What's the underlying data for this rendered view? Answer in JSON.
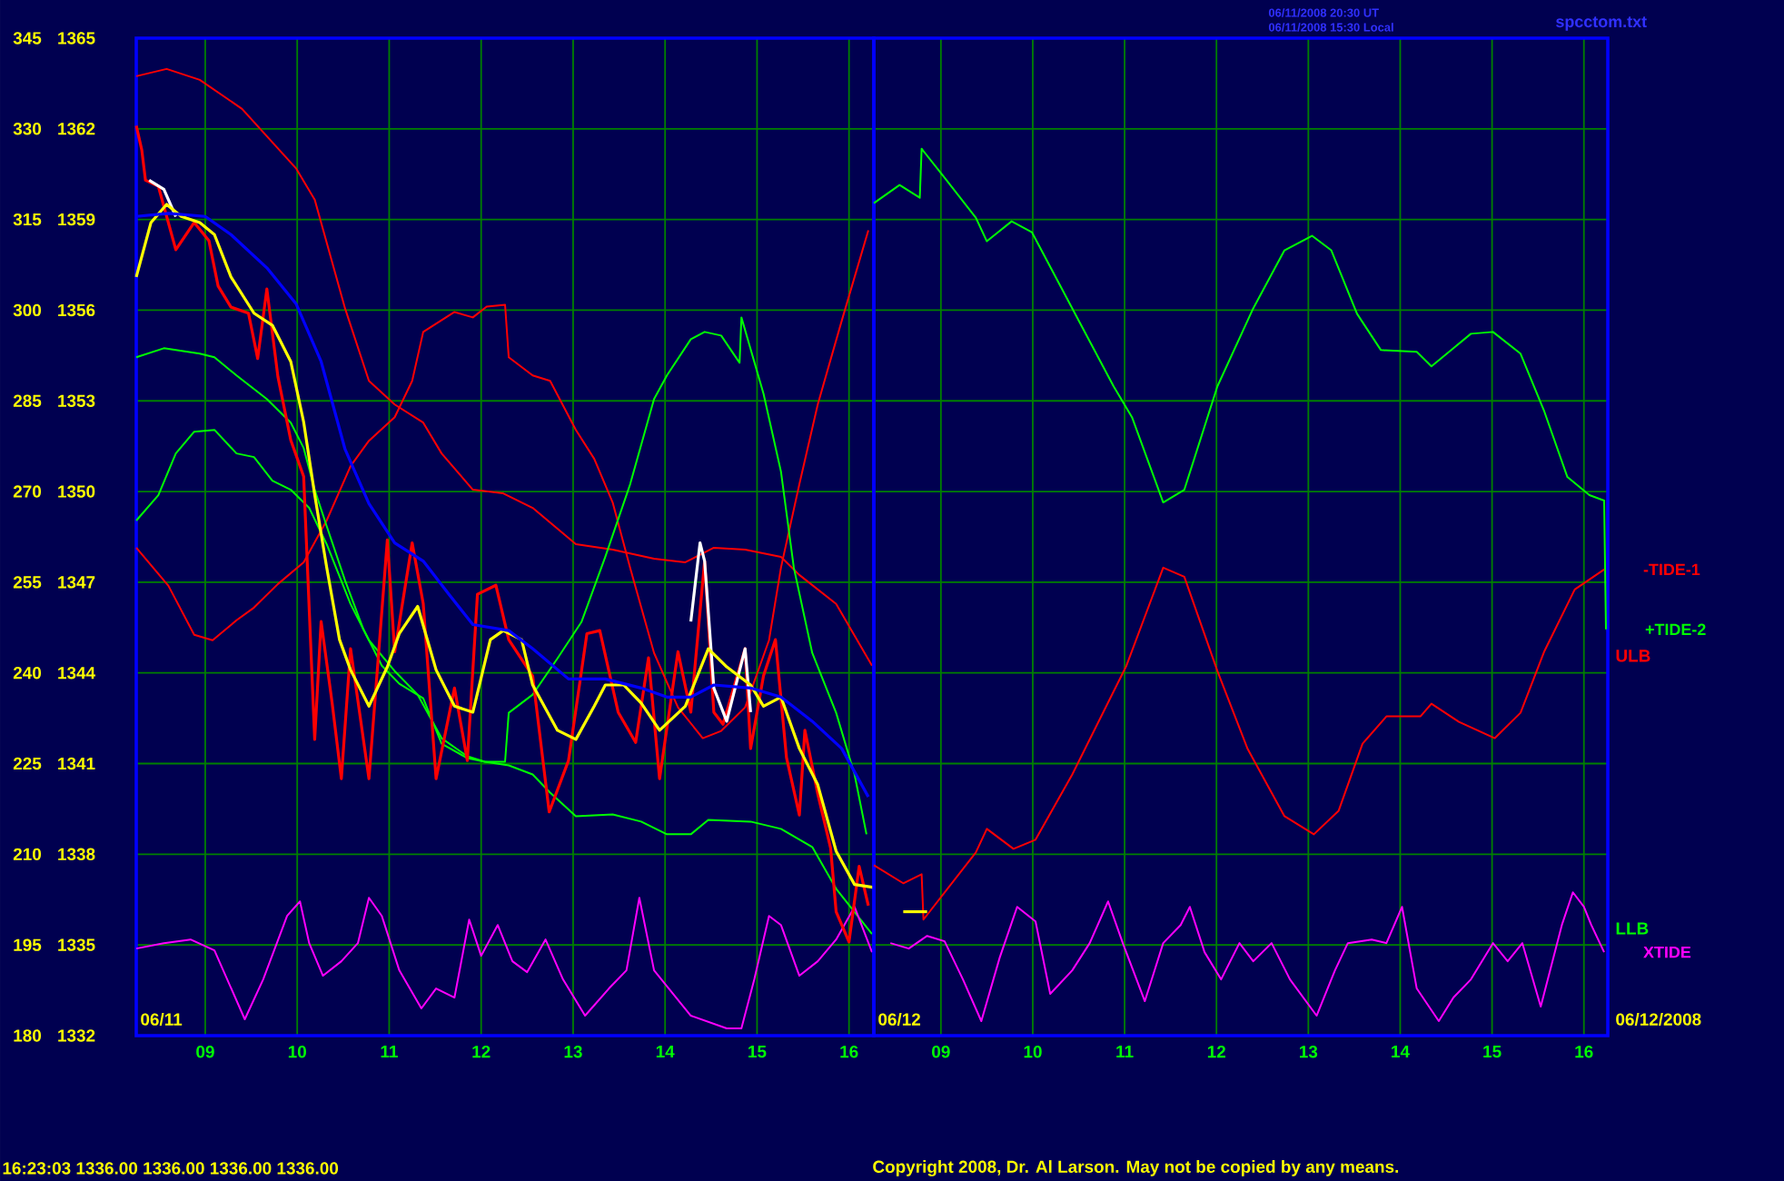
{
  "chart_data": [
    {
      "type": "line",
      "xlim": [
        8.25,
        16.27
      ],
      "ylim": [
        180,
        345
      ],
      "y2lim": [
        1332,
        1365
      ],
      "xticks": [
        {
          "value": 9,
          "label": "09"
        },
        10,
        11,
        12,
        13,
        14,
        15,
        16
      ],
      "yticks": [
        180,
        195,
        210,
        225,
        240,
        255,
        270,
        285,
        300,
        315,
        330,
        345
      ],
      "y2ticks": [
        1332,
        1335,
        1338,
        1341,
        1344,
        1347,
        1350,
        1353,
        1356,
        1359,
        1362,
        1365
      ],
      "grid": true,
      "annotations": [
        "06/11/2008 20:30 UT",
        "06/11/2008 15:30 Local",
        "spcctom.txt",
        "06/11",
        "16:23:03  1336.00 1336.00 1336.00 1336.00",
        "Copyright 2008, Dr. Al Larson. May not be copied by any means."
      ],
      "series": [
        {
          "color": "#ff0000",
          "axis": "y2",
          "x": [
            8.25,
            8.31,
            8.35,
            8.49,
            8.68,
            8.88,
            9.04,
            9.14,
            9.28,
            9.47,
            9.57,
            9.67,
            9.79,
            9.93,
            10.07,
            10.19,
            10.26,
            10.38,
            10.48,
            10.58,
            10.78,
            10.98,
            11.06,
            11.25,
            11.37,
            11.51,
            11.71,
            11.85,
            11.96,
            12.16,
            12.3,
            12.56,
            12.74,
            12.95,
            13.15,
            13.29,
            13.49,
            13.68,
            13.82,
            13.94,
            14.14,
            14.28,
            14.43,
            14.53,
            14.63,
            14.87,
            14.93,
            15.07,
            15.2,
            15.32,
            15.46,
            15.52,
            15.66,
            15.8,
            15.86,
            16.0,
            16.11,
            16.21
          ],
          "values": [
            1362.1,
            1361.3,
            1360.3,
            1360.1,
            1358.0,
            1358.9,
            1358.3,
            1356.8,
            1356.1,
            1355.9,
            1354.4,
            1356.7,
            1353.8,
            1351.7,
            1350.5,
            1341.8,
            1345.7,
            1343.0,
            1340.5,
            1344.8,
            1340.5,
            1348.4,
            1344.7,
            1348.3,
            1346.3,
            1340.5,
            1343.5,
            1341.1,
            1346.6,
            1346.9,
            1345.1,
            1343.9,
            1339.4,
            1341.1,
            1345.3,
            1345.4,
            1342.7,
            1341.7,
            1344.5,
            1340.5,
            1344.7,
            1342.7,
            1347.7,
            1342.7,
            1342.3,
            1344.8,
            1341.5,
            1343.9,
            1345.1,
            1341.2,
            1339.3,
            1342.1,
            1340.0,
            1338.2,
            1336.1,
            1335.1,
            1337.6,
            1336.3
          ]
        },
        {
          "color": "#ffffff",
          "axis": "y2",
          "x": [
            8.39,
            8.55,
            8.68,
            8.9,
            14.28,
            14.38,
            14.43,
            14.53,
            14.67,
            14.87,
            14.93
          ],
          "values": [
            1360.3,
            1360.0,
            1359.1,
            null,
            1345.7,
            1348.3,
            1347.7,
            1343.5,
            1342.4,
            1344.8,
            1342.7
          ]
        },
        {
          "color": "#ffff00",
          "axis": "y2",
          "x": [
            8.25,
            8.41,
            8.58,
            8.74,
            8.94,
            9.1,
            9.28,
            9.53,
            9.73,
            9.93,
            10.07,
            10.19,
            10.32,
            10.46,
            10.58,
            10.78,
            10.98,
            11.11,
            11.31,
            11.51,
            11.71,
            11.91,
            12.1,
            12.24,
            12.44,
            12.56,
            12.83,
            13.03,
            13.23,
            13.35,
            13.55,
            13.74,
            13.94,
            14.22,
            14.47,
            14.67,
            14.93,
            15.07,
            15.26,
            15.46,
            15.66,
            15.86,
            16.06,
            16.27
          ],
          "values": [
            1357.1,
            1358.9,
            1359.5,
            1359.1,
            1358.9,
            1358.5,
            1357.1,
            1355.9,
            1355.5,
            1354.3,
            1352.3,
            1349.9,
            1347.5,
            1345.1,
            1344.1,
            1342.9,
            1344.2,
            1345.3,
            1346.2,
            1344.1,
            1342.9,
            1342.7,
            1345.1,
            1345.4,
            1345.1,
            1343.6,
            1342.1,
            1341.8,
            1342.9,
            1343.6,
            1343.6,
            1343.0,
            1342.1,
            1342.9,
            1344.8,
            1344.2,
            1343.6,
            1342.9,
            1343.2,
            1341.5,
            1340.3,
            1338.1,
            1337.0,
            1336.9
          ]
        },
        {
          "color": "#0000ff",
          "axis": "y2",
          "x": [
            8.25,
            8.6,
            9.0,
            9.28,
            9.67,
            9.99,
            10.26,
            10.52,
            10.78,
            11.06,
            11.37,
            11.65,
            11.91,
            12.3,
            12.56,
            12.95,
            13.35,
            13.74,
            14.02,
            14.28,
            14.53,
            14.93,
            15.26,
            15.6,
            15.92,
            16.21
          ],
          "values": [
            1359.1,
            1359.2,
            1359.1,
            1358.5,
            1357.4,
            1356.2,
            1354.3,
            1351.4,
            1349.6,
            1348.3,
            1347.7,
            1346.6,
            1345.6,
            1345.4,
            1344.8,
            1343.8,
            1343.8,
            1343.5,
            1343.2,
            1343.2,
            1343.6,
            1343.5,
            1343.2,
            1342.4,
            1341.5,
            1339.9
          ]
        },
        {
          "color": "#ff0000",
          "x": [
            8.25,
            8.58,
            8.94,
            9.4,
            9.99,
            10.19,
            10.52,
            10.78,
            11.06,
            11.37,
            11.57,
            11.91,
            12.24,
            12.56,
            13.03,
            13.43,
            13.88,
            14.22,
            14.53,
            14.87,
            15.26,
            15.46,
            15.86,
            16.25
          ],
          "values": [
            338.7,
            339.9,
            338.1,
            333.3,
            323.4,
            318.3,
            300.3,
            288.3,
            284.4,
            281.4,
            276.3,
            270.3,
            269.7,
            267.3,
            261.3,
            260.4,
            258.9,
            258.3,
            260.7,
            260.4,
            259.2,
            256.2,
            251.4,
            241.2
          ]
        },
        {
          "color": "#ff0000",
          "x": [
            8.25,
            8.6,
            8.88,
            9.08,
            9.34,
            9.53,
            9.79,
            10.07,
            10.32,
            10.58,
            10.78,
            11.06,
            11.25,
            11.37,
            11.71,
            11.91,
            12.06,
            12.26,
            12.3,
            12.56,
            12.75,
            13.03,
            13.23,
            13.43,
            13.62,
            13.88,
            14.14,
            14.41,
            14.61,
            14.87,
            15.13,
            15.26,
            15.46,
            15.66,
            15.92,
            16.21
          ],
          "values": [
            260.7,
            254.4,
            246.3,
            245.4,
            248.7,
            250.8,
            254.7,
            258.3,
            265.2,
            274.2,
            278.4,
            282.3,
            288.3,
            296.4,
            299.7,
            298.8,
            300.6,
            300.9,
            292.2,
            289.2,
            288.3,
            280.2,
            275.4,
            268.2,
            257.4,
            243.3,
            234.3,
            229.2,
            230.4,
            234.3,
            245.4,
            257.4,
            271.2,
            284.4,
            298.2,
            313.2
          ]
        },
        {
          "color": "#00ff00",
          "x": [
            8.25,
            8.55,
            8.94,
            9.1,
            9.34,
            9.67,
            9.93,
            10.07,
            10.19,
            10.32,
            10.52,
            10.72,
            10.92,
            11.11,
            11.37,
            11.57,
            11.85,
            12.04,
            12.3,
            12.56,
            12.75,
            13.03,
            13.43,
            13.74,
            14.02,
            14.28,
            14.47,
            14.93,
            15.26,
            15.6,
            15.86,
            16.25
          ],
          "values": [
            292.2,
            293.7,
            292.8,
            292.2,
            289.2,
            285.3,
            281.4,
            277.2,
            270.3,
            264.3,
            255.3,
            247.2,
            241.2,
            238.2,
            235.8,
            228.3,
            225.9,
            225.3,
            224.7,
            223.2,
            220.2,
            216.3,
            216.6,
            215.4,
            213.3,
            213.3,
            215.7,
            215.4,
            214.2,
            211.2,
            204.3,
            196.8
          ]
        },
        {
          "color": "#00ff00",
          "x": [
            8.25,
            8.49,
            8.68,
            8.88,
            9.1,
            9.34,
            9.53,
            9.73,
            9.93,
            10.13,
            10.32,
            10.58,
            10.78,
            11.06,
            11.31,
            11.57,
            11.85,
            12.04,
            12.26,
            12.3,
            12.56,
            12.83,
            13.09,
            13.35,
            13.62,
            13.88,
            14.02,
            14.28,
            14.43,
            14.61,
            14.81,
            14.83,
            15.07,
            15.26,
            15.4,
            15.6,
            15.86,
            16.06,
            16.19
          ],
          "values": [
            265.2,
            269.4,
            276.3,
            279.9,
            280.2,
            276.3,
            275.7,
            271.8,
            270.3,
            267.3,
            261.3,
            251.4,
            245.4,
            240.3,
            236.4,
            229.2,
            226.2,
            225.3,
            225.3,
            233.4,
            236.4,
            242.4,
            248.4,
            259.2,
            271.2,
            285.3,
            289.2,
            295.2,
            296.4,
            295.8,
            291.3,
            298.8,
            286.2,
            273.3,
            257.4,
            243.3,
            233.4,
            223.2,
            213.3
          ]
        },
        {
          "color": "#ff00ff",
          "x": [
            8.25,
            8.55,
            8.84,
            9.1,
            9.43,
            9.63,
            9.89,
            10.03,
            10.13,
            10.28,
            10.48,
            10.66,
            10.78,
            10.92,
            11.11,
            11.35,
            11.51,
            11.71,
            11.87,
            12.0,
            12.18,
            12.34,
            12.5,
            12.7,
            12.89,
            13.13,
            13.39,
            13.58,
            13.72,
            13.88,
            14.28,
            14.67,
            14.83,
            14.97,
            15.13,
            15.26,
            15.46,
            15.66,
            15.86,
            16.06,
            16.25
          ],
          "values": [
            194.4,
            195.3,
            195.9,
            194.1,
            182.7,
            189.3,
            199.8,
            202.2,
            195.3,
            189.9,
            192.3,
            195.3,
            202.8,
            199.8,
            190.8,
            184.5,
            187.8,
            186.3,
            199.2,
            193.2,
            198.3,
            192.3,
            190.5,
            195.9,
            189.3,
            183.3,
            187.8,
            190.8,
            202.8,
            190.8,
            183.3,
            181.2,
            181.2,
            189.3,
            199.8,
            198.3,
            189.9,
            192.3,
            195.9,
            201.3,
            193.8
          ]
        }
      ]
    },
    {
      "type": "line",
      "xlim": [
        8.27,
        16.26
      ],
      "ylim": [
        180,
        345
      ],
      "y2lim": [
        1332,
        1365
      ],
      "xticks": [
        {
          "value": 9,
          "label": "09"
        },
        10,
        11,
        12,
        13,
        14,
        15,
        16
      ],
      "yticks": [
        180,
        195,
        210,
        225,
        240,
        255,
        270,
        285,
        300,
        315,
        330,
        345
      ],
      "y2ticks": [
        1332,
        1335,
        1338,
        1341,
        1344,
        1347,
        1350,
        1353,
        1356,
        1359,
        1362,
        1365
      ],
      "tick_labels": "x",
      "grid": true,
      "annotations": [
        "06/12",
        "06/12/2008",
        "ULB",
        "LLB"
      ],
      "series": [
        {
          "color": "#ffff00",
          "axis": "y2",
          "x": [
            8.59,
            8.85
          ],
          "values": [
            1336.1,
            1336.1
          ]
        },
        {
          "name": "+TIDE-2",
          "color": "#00ff00",
          "x": [
            8.27,
            8.55,
            8.77,
            8.79,
            9.04,
            9.38,
            9.5,
            9.77,
            9.99,
            10.43,
            10.88,
            11.08,
            11.42,
            11.65,
            12.01,
            12.4,
            12.74,
            13.04,
            13.25,
            13.53,
            13.79,
            14.18,
            14.34,
            14.58,
            14.77,
            15.01,
            15.31,
            15.57,
            15.82,
            16.06,
            16.22,
            16.24
          ],
          "values": [
            317.7,
            320.7,
            318.6,
            326.7,
            321.9,
            315.3,
            311.4,
            314.7,
            312.9,
            300.3,
            287.4,
            282.3,
            268.2,
            270.3,
            287.4,
            300.3,
            309.9,
            312.3,
            309.9,
            299.4,
            293.4,
            293.1,
            290.7,
            293.7,
            296.1,
            296.4,
            292.8,
            283.2,
            272.4,
            269.4,
            268.5,
            247.2
          ]
        },
        {
          "name": "-TIDE-1",
          "color": "#ff0000",
          "x": [
            8.27,
            8.59,
            8.79,
            8.81,
            9.38,
            9.5,
            9.79,
            10.03,
            10.43,
            11.02,
            11.42,
            11.65,
            12.01,
            12.34,
            12.74,
            13.06,
            13.33,
            13.59,
            13.85,
            14.22,
            14.34,
            14.64,
            15.03,
            15.31,
            15.57,
            15.9,
            16.22
          ],
          "values": [
            208.2,
            205.2,
            206.7,
            199.2,
            210.3,
            214.2,
            210.9,
            212.4,
            223.2,
            241.2,
            257.4,
            255.9,
            240.3,
            227.4,
            216.3,
            213.3,
            217.2,
            228.3,
            232.8,
            232.8,
            234.9,
            231.9,
            229.2,
            233.4,
            243.6,
            253.8,
            257.1
          ]
        },
        {
          "name": "XTIDE",
          "color": "#ff00ff",
          "x": [
            8.45,
            8.65,
            8.85,
            9.04,
            9.24,
            9.44,
            9.64,
            9.83,
            10.03,
            10.19,
            10.43,
            10.62,
            10.82,
            10.98,
            11.22,
            11.42,
            11.61,
            11.71,
            11.87,
            12.05,
            12.25,
            12.4,
            12.6,
            12.8,
            13.09,
            13.29,
            13.43,
            13.69,
            13.85,
            14.02,
            14.18,
            14.42,
            14.58,
            14.77,
            15.01,
            15.17,
            15.33,
            15.53,
            15.76,
            15.88,
            16.0,
            16.08,
            16.22
          ],
          "values": [
            195.3,
            194.4,
            196.5,
            195.6,
            189.3,
            182.4,
            192.9,
            201.3,
            198.9,
            186.9,
            190.8,
            195.3,
            202.2,
            195.3,
            185.7,
            195.3,
            198.3,
            201.3,
            193.8,
            189.3,
            195.3,
            192.3,
            195.3,
            189.3,
            183.3,
            190.8,
            195.3,
            195.9,
            195.3,
            201.3,
            187.8,
            182.4,
            186.3,
            189.3,
            195.3,
            192.3,
            195.3,
            184.8,
            198.3,
            203.7,
            201.3,
            198.3,
            193.8
          ]
        }
      ]
    }
  ]
}
